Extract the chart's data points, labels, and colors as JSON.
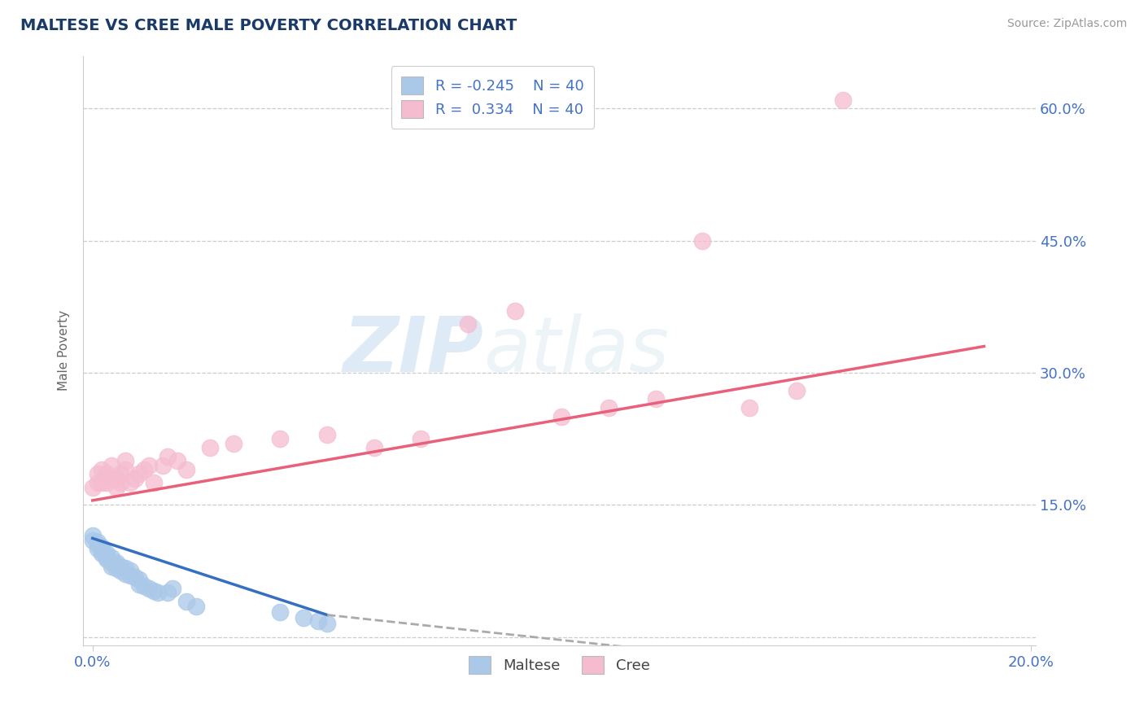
{
  "title": "MALTESE VS CREE MALE POVERTY CORRELATION CHART",
  "source": "Source: ZipAtlas.com",
  "ylabel_label": "Male Poverty",
  "xlim": [
    -0.002,
    0.201
  ],
  "ylim": [
    -0.01,
    0.66
  ],
  "ytick_positions": [
    0.0,
    0.15,
    0.3,
    0.45,
    0.6
  ],
  "ytick_labels": [
    "",
    "15.0%",
    "30.0%",
    "45.0%",
    "60.0%"
  ],
  "xtick_positions": [
    0.0,
    0.2
  ],
  "xtick_labels": [
    "0.0%",
    "20.0%"
  ],
  "legend_R_blue": "-0.245",
  "legend_N_blue": "40",
  "legend_R_pink": " 0.334",
  "legend_N_pink": "40",
  "maltese_color": "#aac8e8",
  "cree_color": "#f5bcd0",
  "maltese_line_color": "#3570c0",
  "cree_line_color": "#e8607a",
  "dashed_line_color": "#aaaaaa",
  "watermark_zip": "ZIP",
  "watermark_atlas": "atlas",
  "maltese_x": [
    0.0,
    0.0,
    0.001,
    0.001,
    0.001,
    0.002,
    0.002,
    0.002,
    0.002,
    0.003,
    0.003,
    0.003,
    0.003,
    0.004,
    0.004,
    0.004,
    0.005,
    0.005,
    0.005,
    0.006,
    0.006,
    0.007,
    0.007,
    0.008,
    0.008,
    0.009,
    0.01,
    0.01,
    0.011,
    0.012,
    0.013,
    0.014,
    0.016,
    0.017,
    0.02,
    0.022,
    0.04,
    0.045,
    0.048,
    0.05
  ],
  "maltese_y": [
    0.11,
    0.115,
    0.1,
    0.105,
    0.108,
    0.1,
    0.095,
    0.098,
    0.102,
    0.092,
    0.095,
    0.09,
    0.088,
    0.085,
    0.09,
    0.08,
    0.082,
    0.078,
    0.085,
    0.08,
    0.075,
    0.078,
    0.072,
    0.07,
    0.075,
    0.068,
    0.065,
    0.06,
    0.058,
    0.055,
    0.052,
    0.05,
    0.05,
    0.055,
    0.04,
    0.035,
    0.028,
    0.022,
    0.018,
    0.015
  ],
  "maltese_solid_xend": 0.05,
  "maltese_dashed_xend": 0.12,
  "cree_x": [
    0.0,
    0.001,
    0.001,
    0.002,
    0.002,
    0.003,
    0.003,
    0.004,
    0.004,
    0.005,
    0.005,
    0.006,
    0.006,
    0.007,
    0.007,
    0.008,
    0.009,
    0.01,
    0.011,
    0.012,
    0.013,
    0.015,
    0.016,
    0.018,
    0.02,
    0.025,
    0.03,
    0.04,
    0.05,
    0.06,
    0.07,
    0.08,
    0.09,
    0.1,
    0.11,
    0.12,
    0.13,
    0.14,
    0.15,
    0.16
  ],
  "cree_y": [
    0.17,
    0.175,
    0.185,
    0.175,
    0.19,
    0.175,
    0.185,
    0.18,
    0.195,
    0.17,
    0.18,
    0.175,
    0.185,
    0.19,
    0.2,
    0.175,
    0.18,
    0.185,
    0.19,
    0.195,
    0.175,
    0.195,
    0.205,
    0.2,
    0.19,
    0.215,
    0.22,
    0.225,
    0.23,
    0.215,
    0.225,
    0.355,
    0.37,
    0.25,
    0.26,
    0.27,
    0.45,
    0.26,
    0.28,
    0.61
  ],
  "cree_line_xstart": 0.0,
  "cree_line_xend": 0.19,
  "cree_line_ystart": 0.155,
  "cree_line_yend": 0.33,
  "maltese_line_ystart": 0.112,
  "maltese_line_yend": 0.025,
  "maltese_dashed_yend": -0.015
}
